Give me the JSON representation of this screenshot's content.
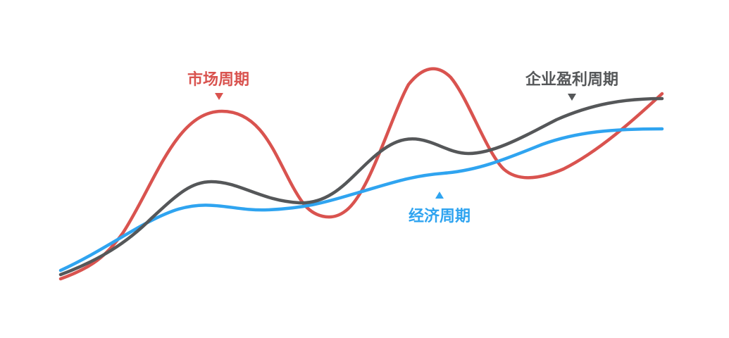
{
  "colors": {
    "market": "#d9534f",
    "profit": "#555759",
    "economy": "#2fa4f0",
    "background": "#ffffff"
  },
  "labels": {
    "market": "市场周期",
    "profit": "企业盈利周期",
    "economy": "经济周期"
  }
}
